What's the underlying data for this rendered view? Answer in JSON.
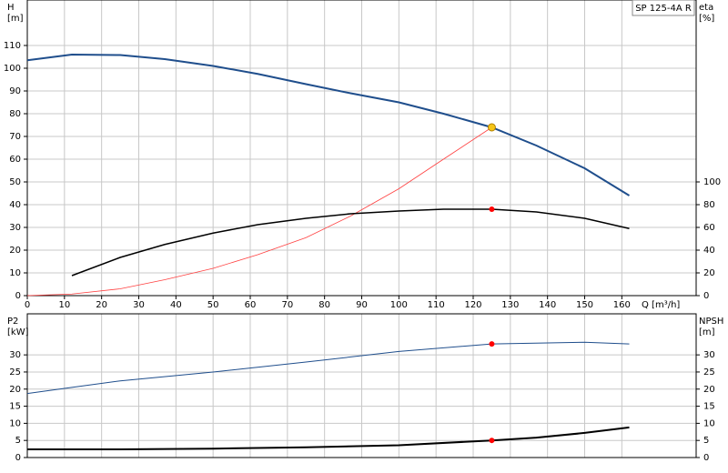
{
  "chart_data": [
    {
      "type": "line",
      "title": "SP 125-4A R",
      "ylabel": "H",
      "yunit": "[m]",
      "y2label": "eta",
      "y2unit": "[%]",
      "xlabel": "Q [m³/h]",
      "xlim": [
        0,
        180
      ],
      "xticks": [
        0,
        10,
        20,
        30,
        40,
        50,
        60,
        70,
        80,
        90,
        100,
        110,
        120,
        130,
        140,
        150,
        160
      ],
      "ylim": [
        0,
        130
      ],
      "yticks": [
        0,
        10,
        20,
        30,
        40,
        50,
        60,
        70,
        80,
        90,
        100,
        110
      ],
      "y2lim": [
        0,
        260
      ],
      "y2ticks": [
        0,
        20,
        40,
        60,
        80,
        100
      ],
      "grid": true,
      "series": [
        {
          "color": "#1f4e8c",
          "width": 2,
          "x": [
            0,
            12,
            25,
            37,
            50,
            62,
            75,
            87,
            100,
            112,
            125,
            137,
            150,
            162
          ],
          "values": [
            103.5,
            106,
            105.8,
            104,
            101,
            97.5,
            93,
            89,
            85,
            80,
            74,
            66,
            56,
            44
          ]
        },
        {
          "color": "#ff4040",
          "width": 0.8,
          "x": [
            0,
            12,
            25,
            37,
            50,
            62,
            75,
            87,
            100,
            112,
            125
          ],
          "values": [
            0,
            0.7,
            3,
            7,
            12,
            18,
            25.5,
            35,
            47,
            60,
            74
          ]
        },
        {
          "color": "#000000",
          "width": 1.5,
          "axis": "y2",
          "x": [
            12,
            25,
            37,
            50,
            62,
            75,
            87,
            100,
            112,
            125,
            137,
            150,
            162
          ],
          "values": [
            17.6,
            33.6,
            45,
            55,
            62.4,
            68,
            72,
            74.4,
            76,
            76,
            73.6,
            68,
            59
          ]
        }
      ],
      "markers": [
        {
          "x": 125,
          "y": 74,
          "color": "#f5c518"
        },
        {
          "x": 125,
          "y": 76,
          "axis": "y2",
          "color": "#ff0000"
        }
      ]
    },
    {
      "type": "line",
      "ylabel": "P2",
      "yunit": "[kW]",
      "y2label": "NPSH",
      "y2unit": "[m]",
      "xlim": [
        0,
        180
      ],
      "ylim": [
        0,
        42
      ],
      "yticks": [
        0,
        5,
        10,
        15,
        20,
        25,
        30
      ],
      "y2lim": [
        0,
        42
      ],
      "y2ticks": [
        0,
        5,
        10,
        15,
        20,
        25,
        30
      ],
      "grid": true,
      "series": [
        {
          "color": "#1f4e8c",
          "width": 1,
          "x": [
            0,
            12,
            25,
            50,
            75,
            100,
            125,
            150,
            162
          ],
          "values": [
            18.7,
            20.5,
            22.4,
            25,
            27.9,
            31,
            33.2,
            33.7,
            33.2
          ]
        },
        {
          "color": "#000000",
          "width": 2,
          "axis": "y2",
          "x": [
            0,
            25,
            50,
            75,
            100,
            125,
            137,
            150,
            162
          ],
          "values": [
            2.4,
            2.4,
            2.6,
            3.0,
            3.6,
            5,
            5.8,
            7.2,
            8.8
          ]
        }
      ],
      "markers": [
        {
          "x": 125,
          "y": 33.2,
          "color": "#ff0000"
        },
        {
          "x": 125,
          "y": 5,
          "axis": "y2",
          "color": "#ff0000"
        }
      ]
    }
  ]
}
